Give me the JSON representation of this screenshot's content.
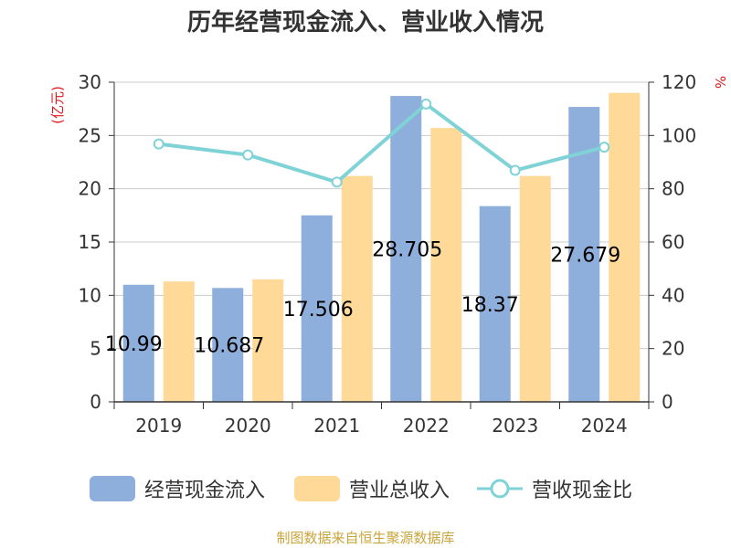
{
  "title": "历年经营现金流入、营业收入情况",
  "left_unit": "(亿元)",
  "right_unit": "%",
  "source": "制图数据来自恒生聚源数据库",
  "colors": {
    "inflow": "#8eaedb",
    "revenue": "#ffd998",
    "ratio": "#7fd3d6",
    "unit_text": "#e0191b",
    "source_text": "#c9a43a"
  },
  "legend": [
    {
      "label": "经营现金流入",
      "type": "bar",
      "color": "#8eaedb"
    },
    {
      "label": "营业总收入",
      "type": "bar",
      "color": "#ffd998"
    },
    {
      "label": "营收现金比",
      "type": "line",
      "color": "#7fd3d6"
    }
  ],
  "chart_data": {
    "type": "bar",
    "categories": [
      "2019",
      "2020",
      "2021",
      "2022",
      "2023",
      "2024"
    ],
    "y_left": {
      "min": 0,
      "max": 30,
      "ticks": [
        0,
        5,
        10,
        15,
        20,
        25,
        30
      ]
    },
    "y_right": {
      "min": 0,
      "max": 120,
      "ticks": [
        0,
        20,
        40,
        60,
        80,
        100,
        120
      ]
    },
    "series": [
      {
        "name": "经营现金流入",
        "type": "bar",
        "axis": "left",
        "values": [
          10.99,
          10.687,
          17.506,
          28.705,
          18.37,
          27.679
        ]
      },
      {
        "name": "营业总收入",
        "type": "bar",
        "axis": "left",
        "values": [
          11.3,
          11.5,
          21.2,
          25.7,
          21.2,
          29.0
        ]
      },
      {
        "name": "营收现金比",
        "type": "line",
        "axis": "right",
        "values": [
          96.8,
          92.7,
          82.5,
          111.8,
          86.9,
          95.6
        ]
      }
    ],
    "data_labels": [
      "10.99",
      "10.687",
      "17.506",
      "28.705",
      "18.37",
      "27.679"
    ],
    "grid": true,
    "legend_position": "bottom"
  }
}
